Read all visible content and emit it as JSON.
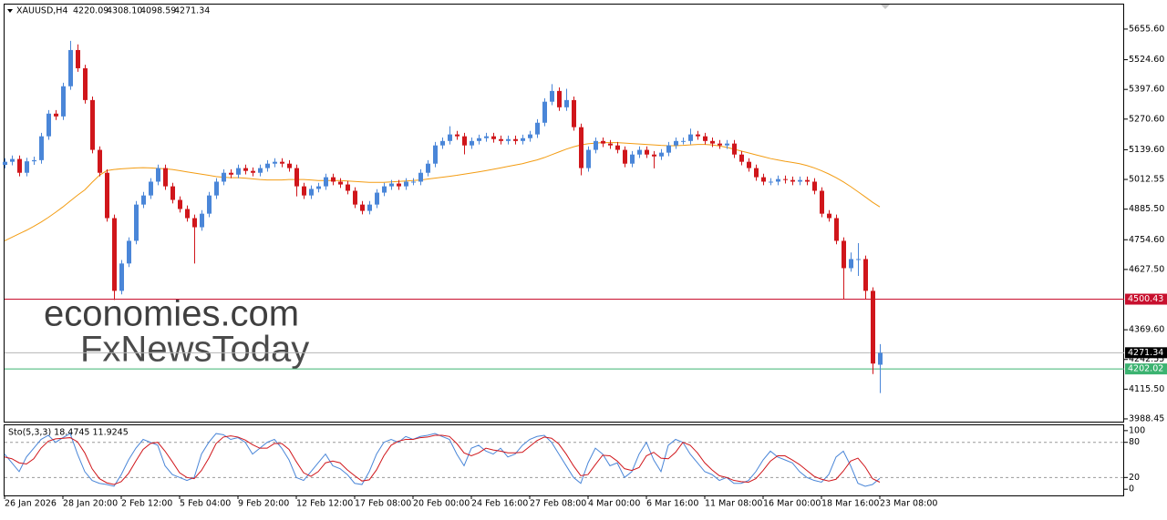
{
  "chart_data": {
    "type": "candlestick",
    "header": {
      "symbol": "XAUUSD,H4",
      "ohlc": [
        "4220.09",
        "4308.10",
        "4098.59",
        "4271.34"
      ]
    },
    "watermarks": [
      "economies.com",
      "FxNewsToday"
    ],
    "up_color": "#4a86d8",
    "down_color": "#d0161b",
    "categories": [
      "26 Jan 2026",
      null,
      null,
      null,
      null,
      null,
      null,
      null,
      "28 Jan 20:00",
      null,
      null,
      null,
      null,
      null,
      null,
      null,
      "2 Feb 12:00",
      null,
      null,
      null,
      null,
      null,
      null,
      null,
      "5 Feb 04:00",
      null,
      null,
      null,
      null,
      null,
      null,
      null,
      "9 Feb 20:00",
      null,
      null,
      null,
      null,
      null,
      null,
      null,
      "12 Feb 12:00",
      null,
      null,
      null,
      null,
      null,
      null,
      null,
      "17 Feb 08:00",
      null,
      null,
      null,
      null,
      null,
      null,
      null,
      "20 Feb 00:00",
      null,
      null,
      null,
      null,
      null,
      null,
      null,
      "24 Feb 16:00",
      null,
      null,
      null,
      null,
      null,
      null,
      null,
      "27 Feb 08:00",
      null,
      null,
      null,
      null,
      null,
      null,
      null,
      "4 Mar 00:00",
      null,
      null,
      null,
      null,
      null,
      null,
      null,
      "6 Mar 16:00",
      null,
      null,
      null,
      null,
      null,
      null,
      null,
      "11 Mar 08:00",
      null,
      null,
      null,
      null,
      null,
      null,
      null,
      "16 Mar 00:00",
      null,
      null,
      null,
      null,
      null,
      null,
      null,
      "18 Mar 16:00",
      null,
      null,
      null,
      null,
      null,
      null,
      null,
      "23 Mar 08:00"
    ],
    "open": [
      5075,
      5088,
      5100,
      5041,
      5090,
      5095,
      5197,
      5294,
      5282,
      5411,
      5566,
      5488,
      5352,
      5139,
      5041,
      4847,
      4536,
      4653,
      4750,
      4905,
      4944,
      5003,
      5061,
      4983,
      4925,
      4886,
      4847,
      4808,
      4866,
      4944,
      5003,
      5041,
      5033,
      5061,
      5049,
      5041,
      5061,
      5080,
      5088,
      5080,
      5061,
      4983,
      4944,
      4972,
      4983,
      5022,
      5003,
      4991,
      4964,
      4905,
      4878,
      4905,
      4956,
      4983,
      4995,
      4983,
      5003,
      5003,
      5041,
      5080,
      5158,
      5177,
      5205,
      5197,
      5158,
      5177,
      5189,
      5197,
      5185,
      5177,
      5185,
      5177,
      5189,
      5205,
      5255,
      5345,
      5391,
      5321,
      5352,
      5236,
      5061,
      5139,
      5177,
      5166,
      5158,
      5139,
      5080,
      5119,
      5139,
      5119,
      5111,
      5127,
      5158,
      5177,
      5177,
      5205,
      5197,
      5177,
      5166,
      5158,
      5166,
      5119,
      5088,
      5061,
      5022,
      5003,
      5003,
      5014,
      5010,
      5003,
      5010,
      5003,
      4964,
      4866,
      4847,
      4750,
      4633,
      4672,
      4672,
      4536,
      4220
    ],
    "high": [
      5103,
      5115,
      5115,
      5105,
      5110,
      5212,
      5309,
      5309,
      5426,
      5605,
      5590,
      5503,
      5367,
      5154,
      5056,
      4862,
      4668,
      4765,
      4920,
      4959,
      5018,
      5076,
      5076,
      4998,
      4940,
      4901,
      4862,
      4881,
      4959,
      5018,
      5056,
      5056,
      5076,
      5076,
      5064,
      5076,
      5095,
      5103,
      5103,
      5095,
      5076,
      4998,
      4987,
      4998,
      5037,
      5037,
      5018,
      5006,
      4979,
      4920,
      4920,
      4971,
      4998,
      5010,
      5010,
      5018,
      5018,
      5056,
      5095,
      5173,
      5192,
      5240,
      5220,
      5212,
      5192,
      5204,
      5212,
      5212,
      5200,
      5200,
      5200,
      5204,
      5220,
      5270,
      5360,
      5420,
      5406,
      5400,
      5367,
      5251,
      5154,
      5192,
      5192,
      5181,
      5173,
      5154,
      5134,
      5154,
      5154,
      5134,
      5142,
      5173,
      5192,
      5192,
      5230,
      5220,
      5212,
      5192,
      5181,
      5181,
      5181,
      5134,
      5103,
      5076,
      5037,
      5018,
      5029,
      5029,
      5025,
      5025,
      5025,
      5018,
      4979,
      4881,
      4862,
      4765,
      4700,
      4740,
      4687,
      4551,
      4308
    ],
    "low": [
      5060,
      5073,
      5026,
      5026,
      5075,
      5080,
      5182,
      5267,
      5267,
      5396,
      5473,
      5337,
      5124,
      5026,
      4832,
      4497,
      4521,
      4638,
      4735,
      4890,
      4929,
      4988,
      4968,
      4910,
      4871,
      4832,
      4653,
      4793,
      4851,
      4929,
      4988,
      5018,
      5018,
      5034,
      5026,
      5026,
      5046,
      5065,
      5065,
      5046,
      4940,
      4929,
      4929,
      4957,
      4968,
      4988,
      4976,
      4949,
      4890,
      4863,
      4863,
      4890,
      4941,
      4968,
      4968,
      4968,
      4988,
      4988,
      5026,
      5065,
      5143,
      5162,
      5182,
      5120,
      5143,
      5162,
      5174,
      5170,
      5162,
      5162,
      5162,
      5162,
      5174,
      5190,
      5240,
      5330,
      5306,
      5306,
      5221,
      5030,
      5046,
      5124,
      5151,
      5143,
      5124,
      5065,
      5065,
      5104,
      5104,
      5060,
      5096,
      5112,
      5143,
      5162,
      5162,
      5182,
      5162,
      5151,
      5143,
      5143,
      5104,
      5073,
      5046,
      5007,
      4988,
      4988,
      4988,
      4995,
      4988,
      4988,
      4988,
      4949,
      4851,
      4832,
      4735,
      4500,
      4618,
      4600,
      4500,
      4180,
      4099
    ],
    "close": [
      5088,
      5100,
      5041,
      5090,
      5095,
      5197,
      5294,
      5282,
      5411,
      5566,
      5488,
      5352,
      5139,
      5041,
      4847,
      4536,
      4653,
      4750,
      4905,
      4944,
      5003,
      5061,
      4983,
      4925,
      4886,
      4847,
      4808,
      4866,
      4944,
      5003,
      5041,
      5033,
      5061,
      5049,
      5041,
      5061,
      5080,
      5088,
      5080,
      5061,
      4983,
      4944,
      4972,
      4983,
      5022,
      5003,
      4991,
      4964,
      4905,
      4878,
      4905,
      4956,
      4983,
      4995,
      4983,
      5003,
      5003,
      5041,
      5080,
      5158,
      5177,
      5205,
      5197,
      5158,
      5177,
      5189,
      5197,
      5185,
      5177,
      5185,
      5177,
      5189,
      5205,
      5255,
      5345,
      5391,
      5321,
      5352,
      5236,
      5061,
      5139,
      5177,
      5166,
      5158,
      5139,
      5080,
      5119,
      5139,
      5119,
      5111,
      5127,
      5158,
      5177,
      5177,
      5205,
      5197,
      5177,
      5166,
      5158,
      5166,
      5119,
      5088,
      5061,
      5022,
      5003,
      5003,
      5014,
      5010,
      5003,
      5010,
      5003,
      4964,
      4866,
      4847,
      4750,
      4633,
      4672,
      4672,
      4536,
      4225,
      4271
    ],
    "ma": {
      "color": "#f39c12",
      "values": [
        4750,
        4765,
        4780,
        4795,
        4812,
        4830,
        4850,
        4872,
        4895,
        4920,
        4945,
        4968,
        5000,
        5030,
        5050,
        5055,
        5058,
        5060,
        5062,
        5063,
        5062,
        5060,
        5058,
        5055,
        5050,
        5045,
        5040,
        5035,
        5030,
        5025,
        5022,
        5020,
        5020,
        5018,
        5015,
        5012,
        5010,
        5010,
        5010,
        5012,
        5012,
        5012,
        5010,
        5008,
        5008,
        5008,
        5008,
        5006,
        5004,
        5002,
        5000,
        5000,
        5000,
        5002,
        5004,
        5006,
        5008,
        5010,
        5014,
        5018,
        5022,
        5026,
        5030,
        5035,
        5040,
        5045,
        5050,
        5056,
        5062,
        5068,
        5074,
        5080,
        5088,
        5096,
        5106,
        5118,
        5130,
        5142,
        5152,
        5160,
        5165,
        5168,
        5170,
        5170,
        5170,
        5168,
        5166,
        5164,
        5162,
        5160,
        5158,
        5157,
        5157,
        5158,
        5160,
        5162,
        5162,
        5160,
        5156,
        5150,
        5142,
        5134,
        5126,
        5118,
        5110,
        5102,
        5096,
        5090,
        5085,
        5080,
        5072,
        5062,
        5050,
        5036,
        5020,
        5002,
        4982,
        4960,
        4938,
        4915,
        4895
      ]
    },
    "ylim": [
      3976.6,
      5760.5
    ],
    "yticks": [
      {
        "value": 5655.6,
        "label": "5655.60"
      },
      {
        "value": 5524.6,
        "label": "5524.60"
      },
      {
        "value": 5397.6,
        "label": "5397.60"
      },
      {
        "value": 5270.6,
        "label": "5270.60"
      },
      {
        "value": 5139.6,
        "label": "5139.60"
      },
      {
        "value": 5012.55,
        "label": "5012.55"
      },
      {
        "value": 4885.5,
        "label": "4885.50"
      },
      {
        "value": 4754.6,
        "label": "4754.60"
      },
      {
        "value": 4627.5,
        "label": "4627.50"
      },
      {
        "value": 4369.6,
        "label": "4369.60"
      },
      {
        "value": 4242.55,
        "label": "4242.55"
      },
      {
        "value": 4115.5,
        "label": "4115.50"
      },
      {
        "value": 3988.45,
        "label": "3988.45"
      }
    ],
    "hlines": [
      {
        "value": 4500.43,
        "line_color": "#c8102e",
        "label_color": "#c8102e"
      },
      {
        "value": 4271.34,
        "line_color": "#b4b4b4",
        "label_color": "#000000"
      },
      {
        "value": 4202.02,
        "line_color": "#3cb371",
        "label_color": "#3cb371"
      }
    ],
    "stochastic": {
      "label": "Sto(5,3,3) 18.4745 11.9245",
      "ylim": [
        -10.6,
        109.1
      ],
      "yticks": [
        100,
        80,
        20,
        0
      ],
      "levels": [
        80,
        20
      ],
      "main": {
        "color": "#4a86d8",
        "values": [
          60,
          45,
          30,
          55,
          70,
          85,
          92,
          80,
          88,
          95,
          60,
          30,
          15,
          10,
          8,
          5,
          25,
          50,
          70,
          85,
          80,
          75,
          40,
          25,
          20,
          15,
          20,
          60,
          80,
          95,
          93,
          85,
          88,
          80,
          60,
          70,
          80,
          85,
          70,
          50,
          20,
          15,
          30,
          45,
          60,
          40,
          35,
          25,
          10,
          8,
          30,
          60,
          80,
          85,
          80,
          90,
          85,
          90,
          92,
          95,
          90,
          85,
          60,
          40,
          70,
          75,
          65,
          60,
          70,
          55,
          60,
          75,
          85,
          90,
          92,
          80,
          60,
          40,
          20,
          10,
          45,
          70,
          60,
          40,
          45,
          20,
          30,
          60,
          80,
          50,
          30,
          75,
          85,
          80,
          60,
          45,
          30,
          25,
          15,
          20,
          10,
          10,
          15,
          30,
          50,
          65,
          55,
          50,
          45,
          30,
          20,
          15,
          12,
          25,
          55,
          65,
          40,
          10,
          5,
          8,
          18.4745
        ]
      },
      "signal": {
        "color": "#d0161b",
        "values": [
          55,
          52,
          45,
          43,
          52,
          70,
          82,
          86,
          87,
          88,
          81,
          62,
          35,
          18,
          11,
          8,
          13,
          27,
          48,
          68,
          78,
          80,
          65,
          47,
          28,
          20,
          18,
          32,
          53,
          78,
          89,
          91,
          89,
          84,
          76,
          70,
          70,
          78,
          78,
          68,
          47,
          28,
          22,
          30,
          45,
          48,
          45,
          33,
          23,
          14,
          16,
          33,
          57,
          75,
          82,
          85,
          85,
          88,
          89,
          92,
          92,
          90,
          78,
          62,
          57,
          62,
          70,
          67,
          65,
          62,
          62,
          63,
          73,
          83,
          89,
          87,
          77,
          60,
          40,
          23,
          25,
          42,
          58,
          57,
          48,
          35,
          32,
          37,
          57,
          63,
          53,
          52,
          63,
          80,
          75,
          62,
          45,
          33,
          23,
          20,
          15,
          13,
          12,
          18,
          32,
          48,
          57,
          57,
          50,
          42,
          32,
          22,
          17,
          14,
          17,
          31,
          48,
          53,
          38,
          18,
          11.9245
        ]
      }
    }
  }
}
